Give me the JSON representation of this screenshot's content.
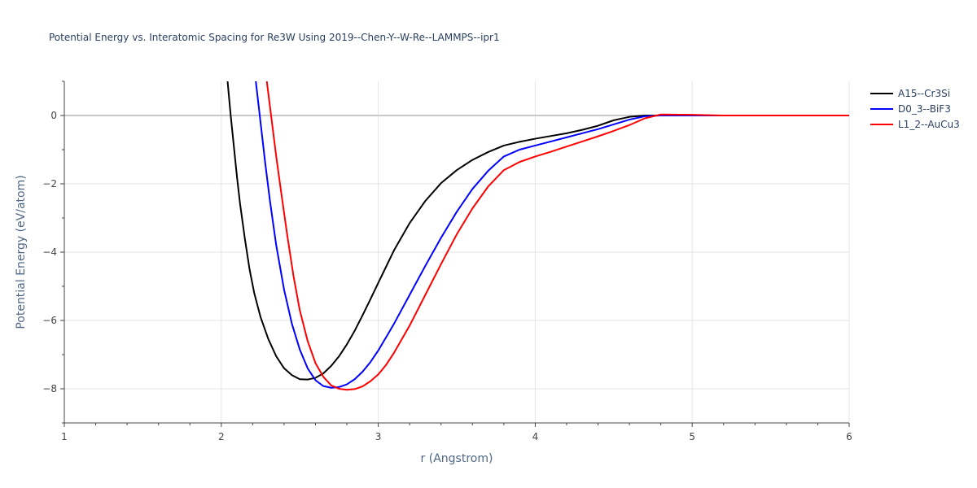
{
  "chart_data": {
    "type": "line",
    "title": "Potential Energy vs. Interatomic Spacing for Re3W Using 2019--Chen-Y--W-Re--LAMMPS--ipr1",
    "xlabel": "r (Angstrom)",
    "ylabel": "Potential Energy (eV/atom)",
    "xlim": [
      1,
      6
    ],
    "ylim": [
      -9,
      1
    ],
    "xticks": [
      1,
      2,
      3,
      4,
      5,
      6
    ],
    "yticks": [
      -8,
      -6,
      -4,
      -2,
      0
    ],
    "xtick_labels": [
      "1",
      "2",
      "3",
      "4",
      "5",
      "6"
    ],
    "ytick_labels": [
      "−8",
      "−6",
      "−4",
      "−2",
      "0"
    ],
    "grid": true,
    "legend_position": "top-right",
    "series": [
      {
        "name": "A15--Cr3Si",
        "color": "#000000",
        "x": [
          2.04,
          2.06,
          2.08,
          2.1,
          2.12,
          2.15,
          2.18,
          2.21,
          2.25,
          2.3,
          2.35,
          2.4,
          2.45,
          2.5,
          2.55,
          2.6,
          2.65,
          2.7,
          2.75,
          2.8,
          2.85,
          2.9,
          2.95,
          3.0,
          3.1,
          3.2,
          3.3,
          3.4,
          3.5,
          3.6,
          3.7,
          3.8,
          3.9,
          4.0,
          4.1,
          4.2,
          4.3,
          4.4,
          4.5,
          4.6,
          4.7,
          4.8,
          5.0,
          5.5,
          6.0
        ],
        "y": [
          1.0,
          0.0,
          -0.9,
          -1.8,
          -2.6,
          -3.6,
          -4.5,
          -5.2,
          -5.9,
          -6.55,
          -7.05,
          -7.4,
          -7.6,
          -7.72,
          -7.73,
          -7.68,
          -7.55,
          -7.33,
          -7.05,
          -6.7,
          -6.3,
          -5.85,
          -5.38,
          -4.9,
          -3.95,
          -3.15,
          -2.5,
          -1.98,
          -1.6,
          -1.3,
          -1.07,
          -0.88,
          -0.77,
          -0.68,
          -0.6,
          -0.52,
          -0.42,
          -0.3,
          -0.14,
          -0.04,
          0.0,
          0.0,
          0.0,
          0.0,
          0.0
        ]
      },
      {
        "name": "D0_3--BiF3",
        "color": "#0000ff",
        "x": [
          2.22,
          2.25,
          2.28,
          2.31,
          2.35,
          2.4,
          2.45,
          2.5,
          2.55,
          2.6,
          2.65,
          2.7,
          2.75,
          2.8,
          2.85,
          2.9,
          2.95,
          3.0,
          3.1,
          3.2,
          3.3,
          3.4,
          3.5,
          3.6,
          3.7,
          3.8,
          3.9,
          4.0,
          4.1,
          4.2,
          4.3,
          4.4,
          4.5,
          4.6,
          4.7,
          4.8,
          5.0,
          5.5,
          6.0
        ],
        "y": [
          1.0,
          -0.2,
          -1.4,
          -2.5,
          -3.8,
          -5.1,
          -6.1,
          -6.85,
          -7.4,
          -7.75,
          -7.92,
          -7.97,
          -7.95,
          -7.87,
          -7.72,
          -7.5,
          -7.22,
          -6.88,
          -6.1,
          -5.25,
          -4.4,
          -3.58,
          -2.82,
          -2.15,
          -1.62,
          -1.2,
          -1.0,
          -0.88,
          -0.76,
          -0.64,
          -0.52,
          -0.4,
          -0.26,
          -0.12,
          -0.02,
          0.0,
          0.0,
          0.0,
          0.0
        ]
      },
      {
        "name": "L1_2--AuCu3",
        "color": "#ff0000",
        "x": [
          2.29,
          2.32,
          2.35,
          2.38,
          2.42,
          2.46,
          2.5,
          2.55,
          2.6,
          2.65,
          2.7,
          2.75,
          2.8,
          2.85,
          2.9,
          2.95,
          3.0,
          3.05,
          3.1,
          3.2,
          3.3,
          3.4,
          3.5,
          3.6,
          3.7,
          3.8,
          3.9,
          4.0,
          4.1,
          4.2,
          4.3,
          4.4,
          4.5,
          4.6,
          4.7,
          4.8,
          5.0,
          5.2,
          5.5,
          6.0
        ],
        "y": [
          1.0,
          -0.1,
          -1.2,
          -2.2,
          -3.5,
          -4.7,
          -5.7,
          -6.6,
          -7.25,
          -7.65,
          -7.9,
          -8.0,
          -8.03,
          -8.01,
          -7.93,
          -7.78,
          -7.58,
          -7.3,
          -6.95,
          -6.15,
          -5.25,
          -4.35,
          -3.48,
          -2.72,
          -2.08,
          -1.6,
          -1.36,
          -1.2,
          -1.06,
          -0.91,
          -0.76,
          -0.61,
          -0.45,
          -0.28,
          -0.08,
          0.03,
          0.02,
          0.0,
          0.0,
          0.0
        ]
      }
    ]
  }
}
